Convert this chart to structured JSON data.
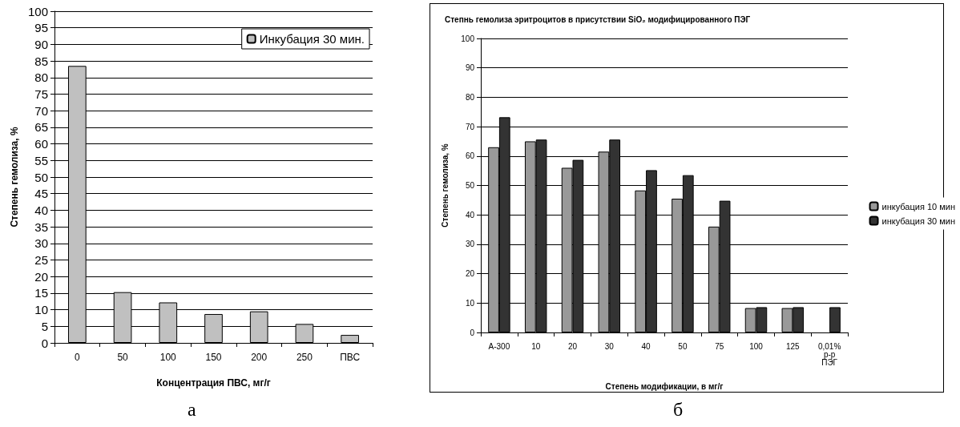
{
  "chart_data": [
    {
      "type": "bar",
      "xlabel": "Концентрация ПВС, мг/г",
      "ylabel": "Степень гемолиза, %",
      "categories": [
        "0",
        "50",
        "100",
        "150",
        "200",
        "250",
        "ПВС"
      ],
      "series": [
        {
          "name": "Инкубация 30 мин.",
          "color": "#c0c0c0",
          "values": [
            83.5,
            15.3,
            12.2,
            8.7,
            9.5,
            5.7,
            2.4
          ]
        }
      ],
      "ylim": [
        0,
        100
      ],
      "yticks": [
        0,
        5,
        10,
        15,
        20,
        25,
        30,
        35,
        40,
        45,
        50,
        55,
        60,
        65,
        70,
        75,
        80,
        85,
        90,
        95,
        100
      ],
      "grid": "y",
      "legend": "top right",
      "annotations": [
        "а"
      ]
    },
    {
      "type": "bar",
      "title": "Степнь гемолиза эритроцитов в присутствии SiO₂ модифицированного ПЭГ",
      "xlabel": "Степень модификации, в мг/г",
      "ylabel": "Степень гемолиза, %",
      "categories": [
        "А-300",
        "10",
        "20",
        "30",
        "40",
        "50",
        "75",
        "100",
        "125",
        "0,01%\nр-р\nПЭГ"
      ],
      "series": [
        {
          "name": "инкубация 10 мин",
          "color": "#999999",
          "values": [
            63,
            65,
            56,
            61.5,
            48.3,
            45.5,
            36,
            8.3,
            8.3,
            null
          ]
        },
        {
          "name": "инкубация 30 мин",
          "color": "#333333",
          "values": [
            73.2,
            65.6,
            58.7,
            65.6,
            55.2,
            53.5,
            44.8,
            8.6,
            8.6,
            8.6
          ]
        }
      ],
      "ylim": [
        0,
        100
      ],
      "yticks": [
        0,
        10,
        20,
        30,
        40,
        50,
        60,
        70,
        80,
        90,
        100
      ],
      "grid": "y",
      "legend": "right",
      "annotations": [
        "б"
      ]
    }
  ]
}
